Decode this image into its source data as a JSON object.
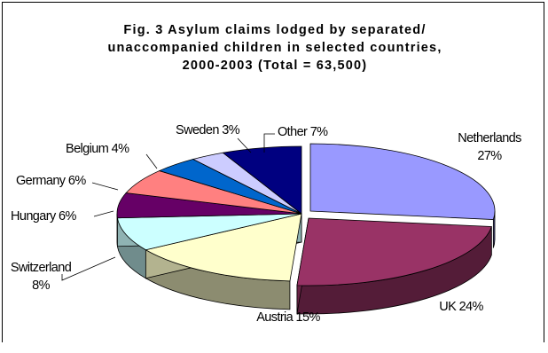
{
  "chart_data": {
    "type": "pie",
    "title": "Fig. 3 Asylum claims lodged by separated/\nunaccompanied children in selected countries,\n2000-2003 (Total = 63,500)",
    "slices": [
      {
        "label": "Netherlands",
        "value": 27,
        "percent_text": "27%",
        "color": "#9999FF"
      },
      {
        "label": "UK",
        "value": 24,
        "percent_text": "UK 24%",
        "color": "#993366"
      },
      {
        "label": "Austria",
        "value": 15,
        "percent_text": "Austria 15%",
        "color": "#FFFFCC"
      },
      {
        "label": "Switzerland",
        "value": 8,
        "percent_text": "8%",
        "color": "#CCFFFF"
      },
      {
        "label": "Hungary",
        "value": 6,
        "percent_text": "Hungary 6%",
        "color": "#660066"
      },
      {
        "label": "Germany",
        "value": 6,
        "percent_text": "Germany 6%",
        "color": "#FF8080"
      },
      {
        "label": "Belgium",
        "value": 4,
        "percent_text": "Belgium 4%",
        "color": "#0066CC"
      },
      {
        "label": "Sweden",
        "value": 3,
        "percent_text": "Sweden 3%",
        "color": "#CCCCFF"
      },
      {
        "label": "Other",
        "value": 7,
        "percent_text": "Other 7%",
        "color": "#000080"
      }
    ]
  }
}
